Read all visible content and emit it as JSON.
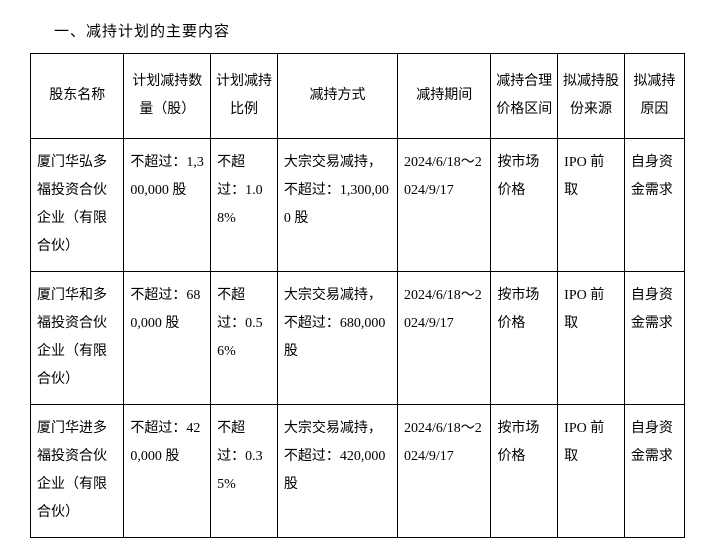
{
  "title": "一、减持计划的主要内容",
  "columns": [
    "股东名称",
    "计划减持数量（股）",
    "计划减持比例",
    "减持方式",
    "减持期间",
    "减持合理价格区间",
    "拟减持股份来源",
    "拟减持原因"
  ],
  "rows": [
    {
      "name": "厦门华弘多福投资合伙企业（有限合伙）",
      "qty": "不超过：1,300,000 股",
      "ratio": "不超过：1.08%",
      "method": "大宗交易减持，不超过：1,300,000 股",
      "period": "2024/6/18～2024/9/17",
      "price": "按市场价格",
      "source": "IPO 前取",
      "reason": "自身资金需求"
    },
    {
      "name": "厦门华和多福投资合伙企业（有限合伙）",
      "qty": "不超过：680,000 股",
      "ratio": "不超过：0.56%",
      "method": "大宗交易减持，不超过：680,000 股",
      "period": "2024/6/18～2024/9/17",
      "price": "按市场价格",
      "source": "IPO 前取",
      "reason": "自身资金需求"
    },
    {
      "name": "厦门华进多福投资合伙企业（有限合伙）",
      "qty": "不超过：420,000 股",
      "ratio": "不超过：0.35%",
      "method": "大宗交易减持，不超过：420,000 股",
      "period": "2024/6/18～2024/9/17",
      "price": "按市场价格",
      "source": "IPO 前取",
      "reason": "自身资金需求"
    }
  ]
}
